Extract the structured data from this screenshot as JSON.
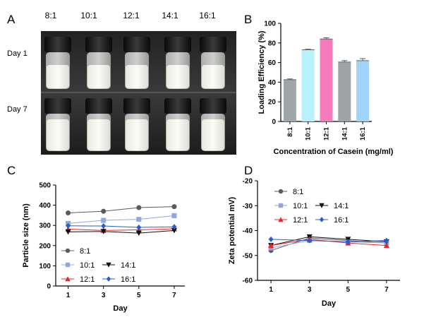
{
  "panelA": {
    "letter": "A",
    "columns": [
      "8:1",
      "10:1",
      "12:1",
      "14:1",
      "16:1"
    ],
    "rows": [
      "Day 1",
      "Day 7"
    ]
  },
  "panelB": {
    "letter": "B",
    "chart_data": {
      "type": "bar",
      "categories": [
        "8:1",
        "10:1",
        "12:1",
        "14:1",
        "16:1"
      ],
      "values": [
        42.5,
        73,
        84,
        60.5,
        62
      ],
      "errors": [
        0.8,
        0.6,
        1.2,
        1.5,
        2
      ],
      "colors": [
        "#9ea6a8",
        "#b7f1fb",
        "#f57bbd",
        "#9fa3a5",
        "#a2d3f9"
      ],
      "xlabel": "Concentration of Casein (mg/ml)",
      "ylabel": "Loading Efficiency (%)",
      "ylim": [
        0,
        100
      ],
      "yticks": [
        0,
        20,
        40,
        60,
        80,
        100
      ]
    }
  },
  "panelC": {
    "letter": "C",
    "chart_data": {
      "type": "line",
      "x": [
        1,
        3,
        5,
        7
      ],
      "xlabel": "Day",
      "ylabel": "Particle size (nm)",
      "ylim": [
        0,
        500
      ],
      "yticks": [
        0,
        100,
        200,
        300,
        400,
        500
      ],
      "series": [
        {
          "name": "8:1",
          "values": [
            362,
            370,
            388,
            393
          ],
          "color": "#5b5b5b",
          "marker": "circle"
        },
        {
          "name": "10:1",
          "values": [
            310,
            325,
            330,
            348
          ],
          "color": "#8fa9e0",
          "marker": "square"
        },
        {
          "name": "12:1",
          "values": [
            282,
            275,
            278,
            283
          ],
          "color": "#e8252a",
          "marker": "triangle-up"
        },
        {
          "name": "14:1",
          "values": [
            268,
            270,
            262,
            275
          ],
          "color": "#111111",
          "marker": "triangle-down"
        },
        {
          "name": "16:1",
          "values": [
            298,
            297,
            290,
            293
          ],
          "color": "#2a5bd7",
          "marker": "diamond"
        }
      ],
      "legend_layout": [
        [
          "8:1"
        ],
        [
          "10:1",
          "14:1"
        ],
        [
          "12:1",
          "16:1"
        ]
      ]
    }
  },
  "panelD": {
    "letter": "D",
    "chart_data": {
      "type": "line",
      "x": [
        1,
        3,
        5,
        7
      ],
      "xlabel": "Day",
      "ylabel": "Zeta potential   mV)",
      "ylim": [
        -60,
        -20
      ],
      "yticks": [
        -20,
        -30,
        -40,
        -50,
        -60
      ],
      "series": [
        {
          "name": "8:1",
          "values": [
            -48,
            -43,
            -44,
            -45
          ],
          "color": "#5b5b5b",
          "marker": "circle"
        },
        {
          "name": "10:1",
          "values": [
            -47,
            -44,
            -44.5,
            -45
          ],
          "color": "#8fa9e0",
          "marker": "square"
        },
        {
          "name": "14:1",
          "values": [
            -46,
            -42.5,
            -43.5,
            -44.5
          ],
          "color": "#111111",
          "marker": "triangle-down"
        },
        {
          "name": "12:1",
          "values": [
            -46,
            -43.5,
            -45,
            -46
          ],
          "color": "#e8252a",
          "marker": "triangle-up"
        },
        {
          "name": "16:1",
          "values": [
            -43.5,
            -44,
            -44.5,
            -44
          ],
          "color": "#2a5bd7",
          "marker": "diamond"
        }
      ],
      "legend_layout": [
        [
          "8:1"
        ],
        [
          "10:1",
          "14:1"
        ],
        [
          "12:1",
          "16:1"
        ]
      ]
    }
  }
}
